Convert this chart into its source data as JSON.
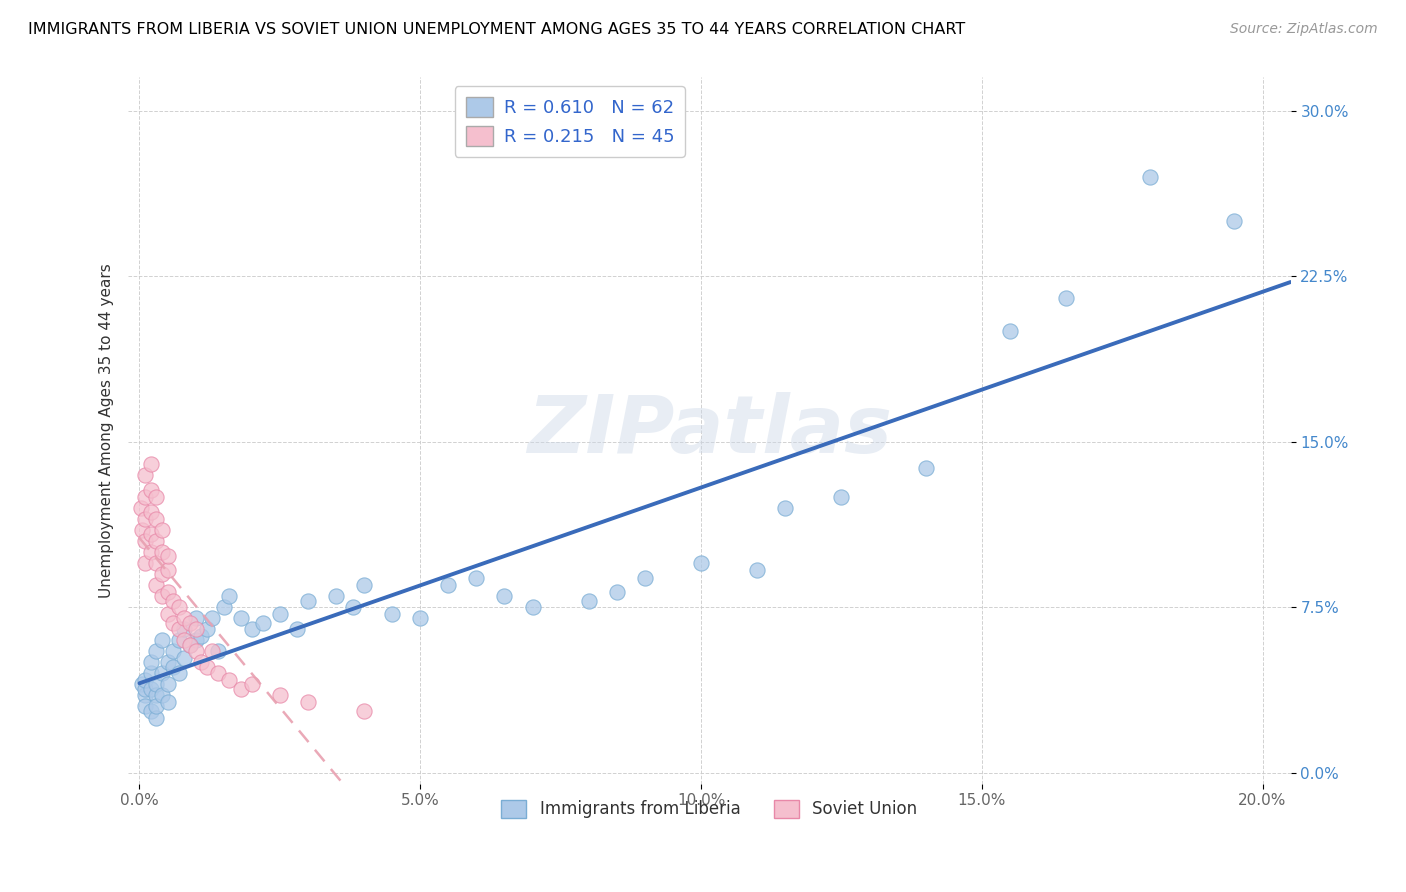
{
  "title": "IMMIGRANTS FROM LIBERIA VS SOVIET UNION UNEMPLOYMENT AMONG AGES 35 TO 44 YEARS CORRELATION CHART",
  "source": "Source: ZipAtlas.com",
  "ylabel": "Unemployment Among Ages 35 to 44 years",
  "xlim": [
    -0.002,
    0.205
  ],
  "ylim": [
    -0.005,
    0.315
  ],
  "xticks": [
    0.0,
    0.05,
    0.1,
    0.15,
    0.2
  ],
  "xticklabels": [
    "0.0%",
    "5.0%",
    "10.0%",
    "15.0%",
    "20.0%"
  ],
  "yticks": [
    0.0,
    0.075,
    0.15,
    0.225,
    0.3
  ],
  "yticklabels": [
    "0.0%",
    "7.5%",
    "15.0%",
    "22.5%",
    "30.0%"
  ],
  "liberia_R": 0.61,
  "liberia_N": 62,
  "soviet_R": 0.215,
  "soviet_N": 45,
  "liberia_color": "#adc9e8",
  "liberia_edge": "#7aadd4",
  "soviet_color": "#f5bfce",
  "soviet_edge": "#e888a8",
  "liberia_line_color": "#3a6bba",
  "soviet_line_color": "#e8a0b0",
  "watermark": "ZIPatlas",
  "legend_lib_label": "R = 0.610   N = 62",
  "legend_sov_label": "R = 0.215   N = 45",
  "bottom_lib_label": "Immigrants from Liberia",
  "bottom_sov_label": "Soviet Union",
  "liberia_x": [
    0.0005,
    0.001,
    0.001,
    0.001,
    0.001,
    0.002,
    0.002,
    0.002,
    0.002,
    0.003,
    0.003,
    0.003,
    0.003,
    0.003,
    0.004,
    0.004,
    0.004,
    0.005,
    0.005,
    0.005,
    0.006,
    0.006,
    0.007,
    0.007,
    0.008,
    0.008,
    0.009,
    0.01,
    0.01,
    0.011,
    0.012,
    0.013,
    0.014,
    0.015,
    0.016,
    0.018,
    0.02,
    0.022,
    0.025,
    0.028,
    0.03,
    0.035,
    0.038,
    0.04,
    0.045,
    0.05,
    0.055,
    0.06,
    0.065,
    0.07,
    0.08,
    0.085,
    0.09,
    0.1,
    0.11,
    0.115,
    0.125,
    0.14,
    0.155,
    0.165,
    0.18,
    0.195
  ],
  "liberia_y": [
    0.04,
    0.035,
    0.038,
    0.042,
    0.03,
    0.028,
    0.045,
    0.038,
    0.05,
    0.035,
    0.04,
    0.025,
    0.055,
    0.03,
    0.045,
    0.035,
    0.06,
    0.04,
    0.032,
    0.05,
    0.048,
    0.055,
    0.045,
    0.06,
    0.052,
    0.065,
    0.058,
    0.06,
    0.07,
    0.062,
    0.065,
    0.07,
    0.055,
    0.075,
    0.08,
    0.07,
    0.065,
    0.068,
    0.072,
    0.065,
    0.078,
    0.08,
    0.075,
    0.085,
    0.072,
    0.07,
    0.085,
    0.088,
    0.08,
    0.075,
    0.078,
    0.082,
    0.088,
    0.095,
    0.092,
    0.12,
    0.125,
    0.138,
    0.2,
    0.215,
    0.27,
    0.25
  ],
  "soviet_x": [
    0.0003,
    0.0005,
    0.001,
    0.001,
    0.001,
    0.001,
    0.001,
    0.002,
    0.002,
    0.002,
    0.002,
    0.002,
    0.003,
    0.003,
    0.003,
    0.003,
    0.003,
    0.004,
    0.004,
    0.004,
    0.004,
    0.005,
    0.005,
    0.005,
    0.005,
    0.006,
    0.006,
    0.007,
    0.007,
    0.008,
    0.008,
    0.009,
    0.009,
    0.01,
    0.01,
    0.011,
    0.012,
    0.013,
    0.014,
    0.016,
    0.018,
    0.02,
    0.025,
    0.03,
    0.04
  ],
  "soviet_y": [
    0.12,
    0.11,
    0.095,
    0.105,
    0.115,
    0.125,
    0.135,
    0.1,
    0.108,
    0.118,
    0.128,
    0.14,
    0.085,
    0.095,
    0.105,
    0.115,
    0.125,
    0.08,
    0.09,
    0.1,
    0.11,
    0.072,
    0.082,
    0.092,
    0.098,
    0.068,
    0.078,
    0.065,
    0.075,
    0.06,
    0.07,
    0.058,
    0.068,
    0.055,
    0.065,
    0.05,
    0.048,
    0.055,
    0.045,
    0.042,
    0.038,
    0.04,
    0.035,
    0.032,
    0.028
  ]
}
